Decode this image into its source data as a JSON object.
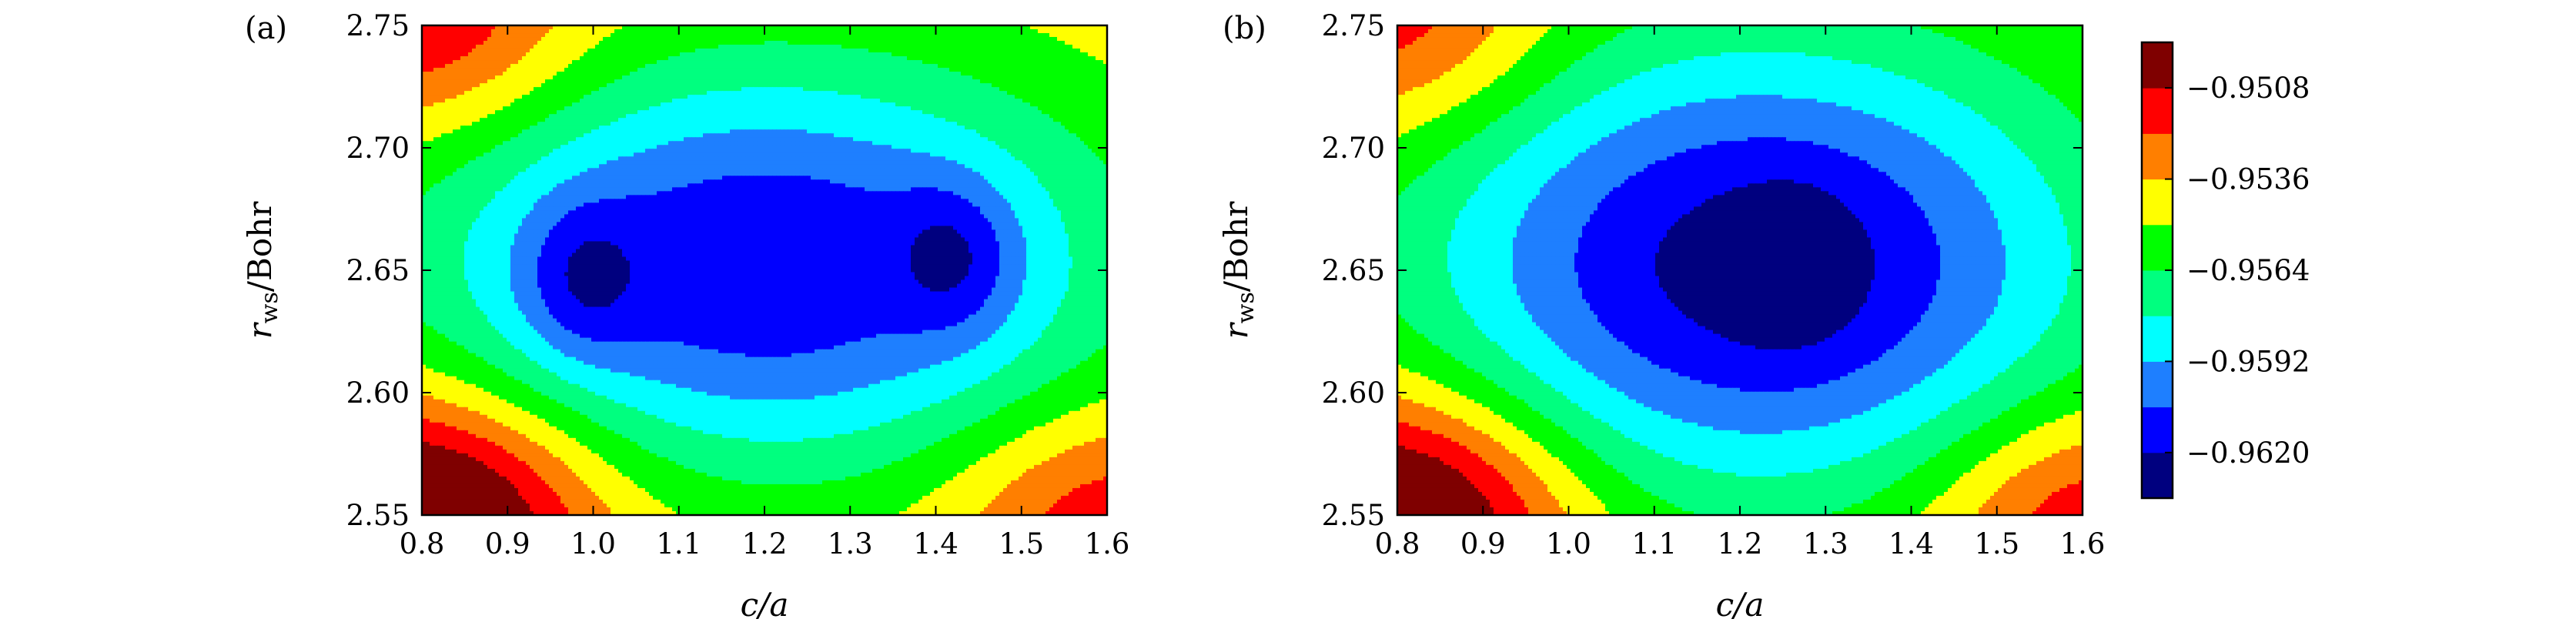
{
  "chart_data": [
    {
      "type": "heatmap",
      "panel_label": "(a)",
      "xlabel": "c/a",
      "ylabel": "r_ws/Bohr",
      "ylabel_parts": {
        "base": "r",
        "sub": "ws",
        "rest": "/Bohr"
      },
      "xlim": [
        0.8,
        1.6
      ],
      "ylim": [
        2.55,
        2.75
      ],
      "x_ticks": [
        "0.8",
        "0.9",
        "1.0",
        "1.1",
        "1.2",
        "1.3",
        "1.4",
        "1.5",
        "1.6"
      ],
      "y_ticks": [
        "2.55",
        "2.60",
        "2.65",
        "2.70",
        "2.75"
      ],
      "minima": [
        {
          "x": 1.0,
          "y": 2.648,
          "value": -0.9625
        },
        {
          "x": 1.41,
          "y": 2.655,
          "value": -0.9625
        }
      ],
      "field": {
        "base": -0.9535,
        "bowl_center": {
          "x": 1.2,
          "y": 2.652
        },
        "bowl_depth": 0.0085,
        "bowl_sx": 0.43,
        "bowl_sy": 0.088,
        "corner_rise_lower_left": 0.0065,
        "corner_rise_upper_left": 0.0035,
        "corner_rise_lower_right": 0.003
      }
    },
    {
      "type": "heatmap",
      "panel_label": "(b)",
      "xlabel": "c/a",
      "ylabel": "r_ws/Bohr",
      "ylabel_parts": {
        "base": "r",
        "sub": "ws",
        "rest": "/Bohr"
      },
      "xlim": [
        0.8,
        1.6
      ],
      "ylim": [
        2.55,
        2.75
      ],
      "x_ticks": [
        "0.8",
        "0.9",
        "1.0",
        "1.1",
        "1.2",
        "1.3",
        "1.4",
        "1.5",
        "1.6"
      ],
      "y_ticks": [
        "2.55",
        "2.60",
        "2.65",
        "2.70",
        "2.75"
      ],
      "minima": [
        {
          "x": 1.26,
          "y": 2.652,
          "value": -0.9634
        }
      ],
      "field": {
        "base": -0.9535,
        "bowl_center": {
          "x": 1.22,
          "y": 2.652
        },
        "bowl_depth": 0.0092,
        "bowl_sx": 0.42,
        "bowl_sy": 0.1,
        "corner_rise_lower_left": 0.0065,
        "corner_rise_upper_left": 0.003,
        "corner_rise_lower_right": 0.0035
      }
    }
  ],
  "colorbar": {
    "levels": [
      -0.9634,
      -0.962,
      -0.9606,
      -0.9592,
      -0.9578,
      -0.9564,
      -0.955,
      -0.9536,
      -0.9522,
      -0.9508,
      -0.9494
    ],
    "colors": [
      "#00007f",
      "#0000ff",
      "#1e7fff",
      "#00ffff",
      "#00ff7f",
      "#00ff00",
      "#ffff00",
      "#ff7f00",
      "#ff0000",
      "#7f0000"
    ],
    "tick_labels": [
      "−0.9508",
      "−0.9536",
      "−0.9564",
      "−0.9592",
      "−0.9620"
    ],
    "tick_values": [
      -0.9508,
      -0.9536,
      -0.9564,
      -0.9592,
      -0.962
    ]
  }
}
